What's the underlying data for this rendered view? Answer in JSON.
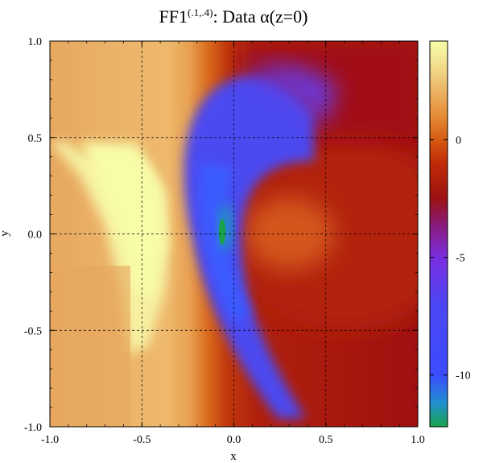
{
  "chart_data": {
    "type": "heatmap",
    "title_main": "FF1",
    "title_super": "(.1,.4)",
    "title_rest": ": Data α(z=0)",
    "xlabel": "x",
    "ylabel": "y",
    "xlim": [
      -1.0,
      1.0
    ],
    "ylim": [
      -1.0,
      1.0
    ],
    "x_ticks": [
      -1.0,
      -0.5,
      0.0,
      0.5,
      1.0
    ],
    "x_tick_labels": [
      "-1.0",
      "-0.5",
      "0.0",
      "0.5",
      "1.0"
    ],
    "y_ticks": [
      -1.0,
      -0.5,
      0.0,
      0.5,
      1.0
    ],
    "y_tick_labels": [
      "-1.0",
      "-0.5",
      "0.0",
      "0.5",
      "1.0"
    ],
    "grid": true,
    "colorbar": {
      "range": [
        -12.2,
        4.2
      ],
      "ticks": [
        0,
        -5,
        -10
      ],
      "tick_labels": [
        "0",
        "-5",
        "-10"
      ],
      "stops": [
        {
          "value": -12.2,
          "color": "#1aa24a"
        },
        {
          "value": -11.2,
          "color": "#2090d0"
        },
        {
          "value": -10.0,
          "color": "#3a4cff"
        },
        {
          "value": -7.0,
          "color": "#4c46f4"
        },
        {
          "value": -5.0,
          "color": "#7a2ee0"
        },
        {
          "value": -3.6,
          "color": "#8a1a7a"
        },
        {
          "value": -2.5,
          "color": "#9c1212"
        },
        {
          "value": -1.0,
          "color": "#c02a08"
        },
        {
          "value": 0.0,
          "color": "#d65a12"
        },
        {
          "value": 1.0,
          "color": "#e58c34"
        },
        {
          "value": 2.0,
          "color": "#ebb062"
        },
        {
          "value": 3.0,
          "color": "#f0d888"
        },
        {
          "value": 4.2,
          "color": "#f6ffa8"
        }
      ]
    }
  }
}
